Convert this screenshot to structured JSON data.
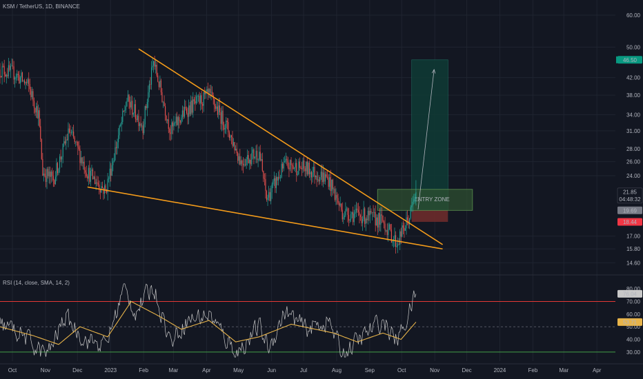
{
  "header": {
    "symbol": "KSM / TetherUS, 1D, BINANCE"
  },
  "indicator": {
    "rsi_label": "RSI (14, close, SMA, 14, 2)"
  },
  "colors": {
    "background": "#131722",
    "grid": "#1f2430",
    "candle_up": "#26a69a",
    "candle_down": "#ef5350",
    "trendline": "#f59c1a",
    "rsi_line": "#c8c8c8",
    "rsi_ma": "#e8b44a",
    "rsi_overbought": "#e53935",
    "rsi_oversold": "#43a047",
    "target_zone": "#0f3b35",
    "entry_zone": "#2f5230",
    "stop_zone": "#6d2b2b"
  },
  "chart_data": [
    {
      "type": "candlestick",
      "title": "KSM / TetherUS, 1D, BINANCE",
      "scale": "log",
      "xlim": [
        "2022-10-01",
        "2024-04-30"
      ],
      "ylim": [
        14.0,
        60.0
      ],
      "x_tick_labels": [
        "Oct",
        "Nov",
        "Dec",
        "2023",
        "Feb",
        "Mar",
        "Apr",
        "May",
        "Jun",
        "Jul",
        "Aug",
        "Sep",
        "Oct",
        "Nov",
        "Dec",
        "2024",
        "Feb",
        "Mar",
        "Apr"
      ],
      "y_tick_labels": [
        "60.00",
        "50.00",
        "42.00",
        "38.00",
        "34.00",
        "31.00",
        "28.00",
        "26.00",
        "24.00",
        "21.85",
        "17.00",
        "15.80",
        "14.60"
      ],
      "anchor_closes": [
        {
          "date": "2022-10-01",
          "close": 44.0
        },
        {
          "date": "2022-10-15",
          "close": 43.0
        },
        {
          "date": "2022-10-28",
          "close": 40.0
        },
        {
          "date": "2022-11-06",
          "close": 34.0
        },
        {
          "date": "2022-11-10",
          "close": 24.5
        },
        {
          "date": "2022-11-20",
          "close": 23.5
        },
        {
          "date": "2022-12-05",
          "close": 31.0
        },
        {
          "date": "2022-12-22",
          "close": 24.5
        },
        {
          "date": "2023-01-08",
          "close": 22.0
        },
        {
          "date": "2023-01-28",
          "close": 37.0
        },
        {
          "date": "2023-02-12",
          "close": 32.0
        },
        {
          "date": "2023-02-22",
          "close": 46.0
        },
        {
          "date": "2023-03-10",
          "close": 31.0
        },
        {
          "date": "2023-03-25",
          "close": 35.0
        },
        {
          "date": "2023-04-15",
          "close": 38.0
        },
        {
          "date": "2023-05-01",
          "close": 32.0
        },
        {
          "date": "2023-05-15",
          "close": 26.0
        },
        {
          "date": "2023-06-01",
          "close": 27.5
        },
        {
          "date": "2023-06-08",
          "close": 21.0
        },
        {
          "date": "2023-06-25",
          "close": 25.5
        },
        {
          "date": "2023-07-15",
          "close": 25.0
        },
        {
          "date": "2023-08-05",
          "close": 23.5
        },
        {
          "date": "2023-08-18",
          "close": 19.5
        },
        {
          "date": "2023-09-10",
          "close": 19.0
        },
        {
          "date": "2023-09-25",
          "close": 18.5
        },
        {
          "date": "2023-10-08",
          "close": 16.3
        },
        {
          "date": "2023-10-20",
          "close": 19.0
        },
        {
          "date": "2023-10-26",
          "close": 21.85
        }
      ],
      "trendlines": [
        {
          "name": "upper-trendline",
          "from": {
            "date": "2023-02-08",
            "y": 49.5
          },
          "to": {
            "date": "2023-11-20",
            "y": 16.2
          }
        },
        {
          "name": "lower-trendline",
          "from": {
            "date": "2022-12-22",
            "y": 22.5
          },
          "to": {
            "date": "2023-11-20",
            "y": 15.8
          }
        }
      ],
      "position": {
        "x_start": "2023-10-22",
        "x_end": "2023-11-25",
        "target": 46.5,
        "entry": 19.69,
        "stop": 18.44,
        "entry_zone": {
          "x_start": "2023-09-20",
          "x_end": "2023-12-18",
          "y_top": 22.2,
          "y_bottom": 19.69,
          "label": "ENTRY ZONE"
        },
        "projection_arrow": {
          "from": {
            "date": "2023-10-28",
            "y": 19.8
          },
          "to": {
            "date": "2023-11-12",
            "y": 44.0
          }
        }
      },
      "price_tags": [
        {
          "label": "46.50",
          "value": 46.5,
          "color": "#089981"
        },
        {
          "label": "21.85",
          "value": 21.85,
          "color": "#131722",
          "sub_label": "04:48:32"
        },
        {
          "label": "19.69",
          "value": 19.69,
          "color": "#787b86"
        },
        {
          "label": "18.44",
          "value": 18.44,
          "color": "#f23645"
        }
      ]
    },
    {
      "type": "line",
      "title": "RSI (14, close, SMA, 14, 2)",
      "ylim": [
        25,
        85
      ],
      "y_tick_labels": [
        "80.00",
        "70.00",
        "60.00",
        "50.00",
        "40.00",
        "30.00"
      ],
      "levels": {
        "overbought": 70,
        "middle": 50,
        "oversold": 30
      },
      "series": [
        {
          "name": "RSI",
          "anchors": [
            {
              "date": "2022-10-01",
              "y": 52
            },
            {
              "date": "2022-10-20",
              "y": 45
            },
            {
              "date": "2022-11-06",
              "y": 32
            },
            {
              "date": "2022-11-15",
              "y": 28
            },
            {
              "date": "2022-12-01",
              "y": 58
            },
            {
              "date": "2022-12-20",
              "y": 40
            },
            {
              "date": "2023-01-08",
              "y": 35
            },
            {
              "date": "2023-01-25",
              "y": 80
            },
            {
              "date": "2023-02-05",
              "y": 62
            },
            {
              "date": "2023-02-22",
              "y": 82
            },
            {
              "date": "2023-03-10",
              "y": 38
            },
            {
              "date": "2023-03-25",
              "y": 55
            },
            {
              "date": "2023-04-15",
              "y": 60
            },
            {
              "date": "2023-05-01",
              "y": 40
            },
            {
              "date": "2023-05-12",
              "y": 30
            },
            {
              "date": "2023-06-01",
              "y": 50
            },
            {
              "date": "2023-06-10",
              "y": 33
            },
            {
              "date": "2023-06-25",
              "y": 62
            },
            {
              "date": "2023-07-15",
              "y": 48
            },
            {
              "date": "2023-08-05",
              "y": 55
            },
            {
              "date": "2023-08-18",
              "y": 28
            },
            {
              "date": "2023-09-10",
              "y": 45
            },
            {
              "date": "2023-09-25",
              "y": 55
            },
            {
              "date": "2023-10-08",
              "y": 38
            },
            {
              "date": "2023-10-20",
              "y": 62
            },
            {
              "date": "2023-10-26",
              "y": 76.04
            }
          ],
          "last_value": 76.04
        },
        {
          "name": "RSI-based MA",
          "anchors": [
            {
              "date": "2022-10-01",
              "y": 50
            },
            {
              "date": "2022-11-01",
              "y": 43
            },
            {
              "date": "2022-11-25",
              "y": 36
            },
            {
              "date": "2022-12-15",
              "y": 50
            },
            {
              "date": "2023-01-10",
              "y": 42
            },
            {
              "date": "2023-02-01",
              "y": 70
            },
            {
              "date": "2023-02-28",
              "y": 58
            },
            {
              "date": "2023-03-20",
              "y": 48
            },
            {
              "date": "2023-04-15",
              "y": 55
            },
            {
              "date": "2023-05-10",
              "y": 38
            },
            {
              "date": "2023-06-01",
              "y": 42
            },
            {
              "date": "2023-07-01",
              "y": 52
            },
            {
              "date": "2023-08-10",
              "y": 45
            },
            {
              "date": "2023-09-01",
              "y": 38
            },
            {
              "date": "2023-09-25",
              "y": 45
            },
            {
              "date": "2023-10-12",
              "y": 40
            },
            {
              "date": "2023-10-26",
              "y": 53.71
            }
          ],
          "last_value": 53.71
        }
      ],
      "value_tags": [
        {
          "label": "76.04",
          "value": 76.04,
          "color": "#c8c8c8"
        },
        {
          "label": "53.71",
          "value": 53.71,
          "color": "#e8b44a"
        }
      ]
    }
  ]
}
